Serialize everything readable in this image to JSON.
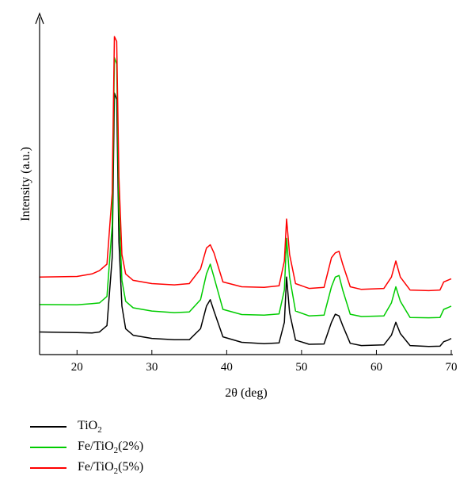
{
  "chart_data": {
    "type": "line",
    "xlabel": "2θ (deg)",
    "ylabel": "Intensity (a.u.)",
    "xlim": [
      15,
      70
    ],
    "ylim": [
      0,
      100
    ],
    "x_ticks": [
      20,
      30,
      40,
      50,
      60,
      70
    ],
    "x": [
      15,
      20,
      22,
      23,
      24,
      24.7,
      25.0,
      25.3,
      25.6,
      26.0,
      26.5,
      27.5,
      30,
      33,
      35,
      36.5,
      37.3,
      37.8,
      38.3,
      39.5,
      42,
      45,
      47,
      47.7,
      48.0,
      48.4,
      49.2,
      51,
      53,
      54,
      54.5,
      55,
      55.5,
      56.5,
      58,
      61,
      62,
      62.6,
      63.2,
      64.5,
      67,
      68.5,
      69,
      69.5,
      70
    ],
    "series": [
      {
        "name": "TiO2",
        "color": "#000000",
        "values": [
          7.0,
          6.8,
          6.7,
          7.0,
          9.0,
          30.0,
          81.0,
          79.0,
          35.0,
          15.0,
          8.0,
          6.0,
          5.0,
          4.6,
          4.6,
          8.0,
          15.0,
          17.0,
          13.5,
          5.5,
          3.8,
          3.4,
          3.6,
          10.0,
          24.0,
          13.0,
          4.5,
          3.2,
          3.3,
          10.0,
          12.5,
          12.0,
          9.0,
          3.5,
          2.8,
          3.0,
          6.0,
          10.0,
          6.5,
          2.8,
          2.5,
          2.6,
          4.0,
          4.4,
          5.0
        ]
      },
      {
        "name": "Fe/TiO2(2%)",
        "color": "#00cc00",
        "values": [
          15.5,
          15.4,
          15.8,
          16.0,
          18.0,
          40.0,
          92.0,
          90.0,
          45.0,
          23.0,
          16.5,
          14.5,
          13.5,
          13.0,
          13.2,
          17.0,
          25.0,
          28.0,
          24.0,
          14.0,
          12.4,
          12.2,
          12.6,
          20.0,
          36.0,
          24.0,
          13.5,
          12.0,
          12.2,
          21.0,
          24.0,
          24.5,
          20.0,
          12.5,
          11.8,
          12.0,
          16.0,
          21.0,
          16.5,
          11.5,
          11.4,
          11.5,
          14.0,
          14.5,
          15.0
        ]
      },
      {
        "name": "Fe/TiO2(5%)",
        "color": "#ff0000",
        "values": [
          24.0,
          24.2,
          25.0,
          26.0,
          28.0,
          50.0,
          98.5,
          97.0,
          55.0,
          31.0,
          25.0,
          23.0,
          22.0,
          21.6,
          22.0,
          26.5,
          33.0,
          34.0,
          31.5,
          22.5,
          21.0,
          20.8,
          21.3,
          29.0,
          42.0,
          31.0,
          22.0,
          20.5,
          20.8,
          30.0,
          31.5,
          32.0,
          28.0,
          21.0,
          20.2,
          20.5,
          24.0,
          29.0,
          24.0,
          20.0,
          19.8,
          20.0,
          22.5,
          23.0,
          23.5
        ]
      }
    ]
  },
  "legend": [
    {
      "label": "TiO",
      "sub": "2",
      "suffix": "",
      "color": "#000000"
    },
    {
      "label": "Fe/TiO",
      "sub": "2",
      "suffix": "(2%)",
      "color": "#00cc00"
    },
    {
      "label": "Fe/TiO",
      "sub": "2",
      "suffix": "(5%)",
      "color": "#ff0000"
    }
  ]
}
